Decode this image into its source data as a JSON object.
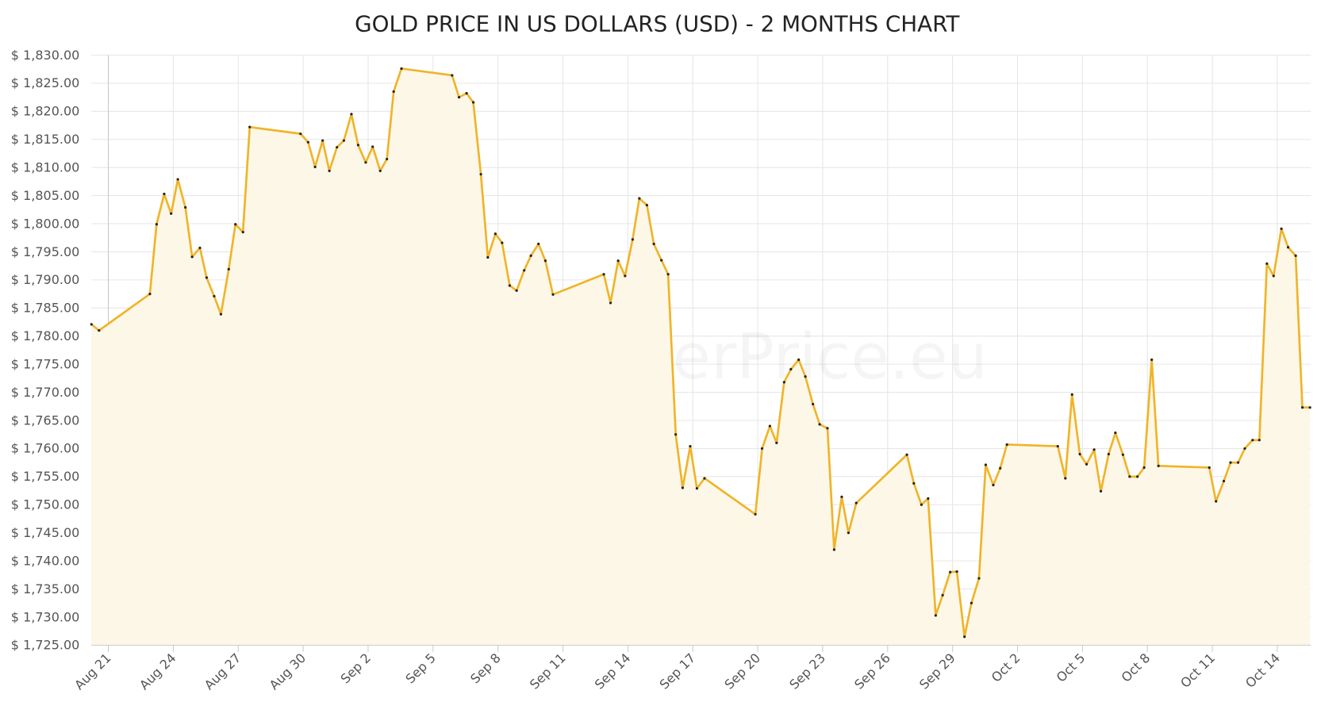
{
  "chart_data": {
    "type": "line",
    "title": "GOLD PRICE IN US DOLLARS (USD) - 2 MONTHS CHART",
    "watermark": "GoldSilverPrice.eu",
    "color": "#f0b429",
    "fill_color": "#fdf7e8",
    "grid": true,
    "xlim": [
      -0.78,
      55.55
    ],
    "xticks": [
      {
        "value": 0,
        "label": "Aug 21"
      },
      {
        "value": 3,
        "label": "Aug 24"
      },
      {
        "value": 6,
        "label": "Aug 27"
      },
      {
        "value": 9,
        "label": "Aug 30"
      },
      {
        "value": 12,
        "label": "Sep 2"
      },
      {
        "value": 15,
        "label": "Sep 5"
      },
      {
        "value": 18,
        "label": "Sep 8"
      },
      {
        "value": 21,
        "label": "Sep 11"
      },
      {
        "value": 24,
        "label": "Sep 14"
      },
      {
        "value": 27,
        "label": "Sep 17"
      },
      {
        "value": 30,
        "label": "Sep 20"
      },
      {
        "value": 33,
        "label": "Sep 23"
      },
      {
        "value": 36,
        "label": "Sep 26"
      },
      {
        "value": 39,
        "label": "Sep 29"
      },
      {
        "value": 42,
        "label": "Oct 2"
      },
      {
        "value": 45,
        "label": "Oct 5"
      },
      {
        "value": 48,
        "label": "Oct 8"
      },
      {
        "value": 51,
        "label": "Oct 11"
      },
      {
        "value": 54,
        "label": "Oct 14"
      }
    ],
    "ylim": [
      1725,
      1830
    ],
    "yticks": [
      {
        "value": 1725,
        "label": "$ 1,725.00"
      },
      {
        "value": 1730,
        "label": "$ 1,730.00"
      },
      {
        "value": 1735,
        "label": "$ 1,735.00"
      },
      {
        "value": 1740,
        "label": "$ 1,740.00"
      },
      {
        "value": 1745,
        "label": "$ 1,745.00"
      },
      {
        "value": 1750,
        "label": "$ 1,750.00"
      },
      {
        "value": 1755,
        "label": "$ 1,755.00"
      },
      {
        "value": 1760,
        "label": "$ 1,760.00"
      },
      {
        "value": 1765,
        "label": "$ 1,765.00"
      },
      {
        "value": 1770,
        "label": "$ 1,770.00"
      },
      {
        "value": 1775,
        "label": "$ 1,775.00"
      },
      {
        "value": 1780,
        "label": "$ 1,780.00"
      },
      {
        "value": 1785,
        "label": "$ 1,785.00"
      },
      {
        "value": 1790,
        "label": "$ 1,790.00"
      },
      {
        "value": 1795,
        "label": "$ 1,795.00"
      },
      {
        "value": 1800,
        "label": "$ 1,800.00"
      },
      {
        "value": 1805,
        "label": "$ 1,805.00"
      },
      {
        "value": 1810,
        "label": "$ 1,810.00"
      },
      {
        "value": 1815,
        "label": "$ 1,815.00"
      },
      {
        "value": 1820,
        "label": "$ 1,820.00"
      },
      {
        "value": 1825,
        "label": "$ 1,825.00"
      },
      {
        "value": 1830,
        "label": "$ 1,830.00"
      }
    ],
    "x": [
      -0.78,
      -0.43,
      1.92,
      2.23,
      2.58,
      2.9,
      3.21,
      3.56,
      3.87,
      4.23,
      4.54,
      4.89,
      5.2,
      5.56,
      5.87,
      6.22,
      6.53,
      8.88,
      9.23,
      9.55,
      9.9,
      10.21,
      10.56,
      10.88,
      11.23,
      11.54,
      11.89,
      12.21,
      12.56,
      12.87,
      13.18,
      13.54,
      15.88,
      16.2,
      16.55,
      16.86,
      17.21,
      17.53,
      17.88,
      18.19,
      18.54,
      18.86,
      19.21,
      19.52,
      19.87,
      20.19,
      20.54,
      22.89,
      23.2,
      23.55,
      23.87,
      24.22,
      24.53,
      24.88,
      25.2,
      25.55,
      25.86,
      26.21,
      26.53,
      26.88,
      27.19,
      27.54,
      29.89,
      30.2,
      30.56,
      30.87,
      31.22,
      31.53,
      31.89,
      32.2,
      32.55,
      32.86,
      33.22,
      33.53,
      33.88,
      34.19,
      34.55,
      36.89,
      37.21,
      37.56,
      37.87,
      38.22,
      38.54,
      38.89,
      39.2,
      39.55,
      39.87,
      40.22,
      40.53,
      40.88,
      41.2,
      41.51,
      43.86,
      44.21,
      44.52,
      44.88,
      45.19,
      45.54,
      45.85,
      46.21,
      46.52,
      46.87,
      47.18,
      47.54,
      47.85,
      48.2,
      48.51,
      50.86,
      51.17,
      51.53,
      51.84,
      52.19,
      52.5,
      52.86,
      53.17,
      53.52,
      53.83,
      54.19,
      54.5,
      54.85,
      55.16,
      55.51
    ],
    "values": [
      1782.1,
      1781.0,
      1787.5,
      1799.9,
      1805.3,
      1801.8,
      1807.9,
      1802.9,
      1794.1,
      1795.7,
      1790.4,
      1787.1,
      1783.9,
      1791.9,
      1799.9,
      1798.5,
      1817.2,
      1816.0,
      1814.5,
      1810.1,
      1814.8,
      1809.4,
      1813.6,
      1814.8,
      1819.5,
      1814.0,
      1810.9,
      1813.7,
      1809.4,
      1811.5,
      1823.5,
      1827.6,
      1826.4,
      1822.5,
      1823.2,
      1821.6,
      1808.8,
      1794.0,
      1798.2,
      1796.6,
      1789.0,
      1788.1,
      1791.7,
      1794.3,
      1796.4,
      1793.4,
      1787.4,
      1791.0,
      1785.9,
      1793.4,
      1790.7,
      1797.2,
      1804.5,
      1803.3,
      1796.4,
      1793.5,
      1791.0,
      1762.5,
      1753.0,
      1760.4,
      1752.9,
      1754.7,
      1748.3,
      1760.0,
      1764.0,
      1761.0,
      1771.8,
      1774.1,
      1775.8,
      1772.8,
      1767.9,
      1764.3,
      1763.6,
      1742.0,
      1751.4,
      1745.0,
      1750.3,
      1758.9,
      1753.8,
      1750.0,
      1751.1,
      1730.3,
      1733.9,
      1738.0,
      1738.1,
      1726.5,
      1732.5,
      1736.9,
      1757.1,
      1753.5,
      1756.5,
      1760.7,
      1760.4,
      1754.7,
      1769.6,
      1759.0,
      1757.2,
      1759.8,
      1752.4,
      1759.0,
      1762.8,
      1758.9,
      1755.0,
      1755.0,
      1756.6,
      1775.8,
      1756.9,
      1756.6,
      1750.6,
      1754.2,
      1757.5,
      1757.5,
      1760.0,
      1761.5,
      1761.5,
      1792.9,
      1790.7,
      1799.1,
      1795.8,
      1794.3,
      1767.3,
      1767.3
    ]
  }
}
